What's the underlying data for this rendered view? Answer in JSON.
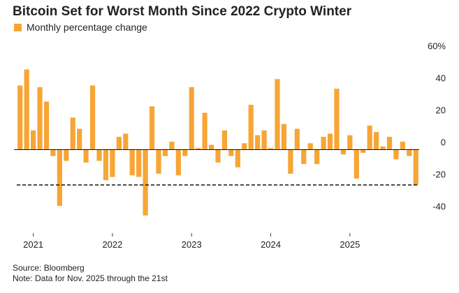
{
  "chart_data": {
    "type": "bar",
    "title": "Bitcoin Set for Worst Month Since 2022 Crypto Winter",
    "series": [
      {
        "name": "Monthly percentage change",
        "color": "#f7a536",
        "values": [
          40,
          50,
          12,
          39,
          30,
          -4,
          -35,
          -7,
          20,
          13,
          -8,
          40,
          -7,
          -19,
          -17,
          8,
          10,
          -16,
          -17,
          -41,
          27,
          -15,
          -4,
          5,
          -16,
          -4,
          39,
          1,
          23,
          3,
          -8,
          12,
          -4,
          -11,
          4,
          28,
          9,
          12,
          1,
          44,
          16,
          -15,
          13,
          -9,
          4,
          -9,
          8,
          10,
          38,
          -3,
          9,
          -18,
          -2,
          15,
          11,
          2,
          8,
          -6,
          5,
          -4,
          -22
        ]
      }
    ],
    "categories": [
      null,
      null,
      "2021",
      null,
      null,
      null,
      null,
      null,
      null,
      null,
      null,
      null,
      null,
      null,
      "2022",
      null,
      null,
      null,
      null,
      null,
      null,
      null,
      null,
      null,
      null,
      null,
      "2023",
      null,
      null,
      null,
      null,
      null,
      null,
      null,
      null,
      null,
      null,
      null,
      "2024",
      null,
      null,
      null,
      null,
      null,
      null,
      null,
      null,
      null,
      null,
      null,
      "2025",
      null,
      null,
      null,
      null,
      null,
      null,
      null,
      null,
      null,
      null
    ],
    "ylim": [
      -45,
      62
    ],
    "yticks": [
      {
        "value": 60,
        "label": "60%"
      },
      40,
      20,
      0,
      -20,
      -40
    ],
    "reference_line": -22,
    "source": "Source: Bloomberg",
    "note": "Note: Data for Nov. 2025 through the 21st"
  }
}
